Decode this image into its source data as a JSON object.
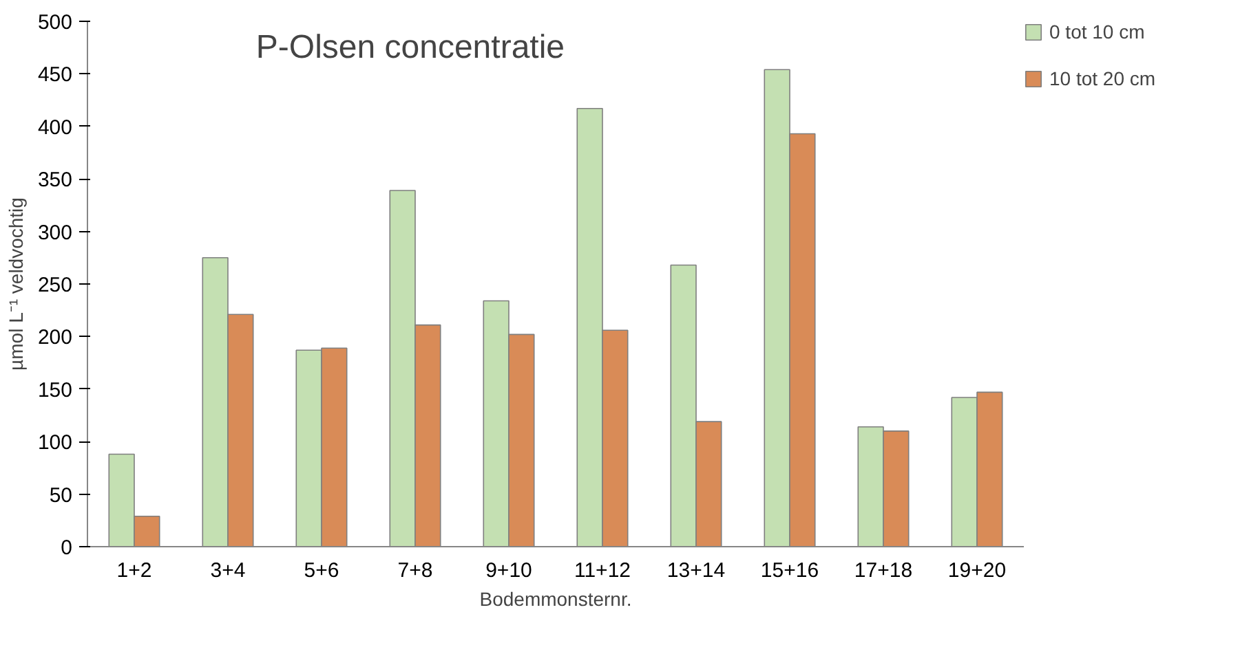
{
  "chart_data": {
    "type": "bar",
    "title": "P-Olsen concentratie",
    "xlabel": "Bodemmonsternr.",
    "ylabel": "µmol L⁻¹ veldvochtig",
    "categories": [
      "1+2",
      "3+4",
      "5+6",
      "7+8",
      "9+10",
      "11+12",
      "13+14",
      "15+16",
      "17+18",
      "19+20"
    ],
    "series": [
      {
        "name": "0 tot 10 cm",
        "color": "#c4e0b2",
        "values": [
          88,
          275,
          187,
          339,
          234,
          417,
          268,
          454,
          114,
          142
        ]
      },
      {
        "name": "10 tot 20 cm",
        "color": "#d98b57",
        "values": [
          29,
          221,
          189,
          211,
          202,
          206,
          119,
          393,
          110,
          147
        ]
      }
    ],
    "ylim": [
      0,
      500
    ],
    "yticks": [
      0,
      50,
      100,
      150,
      200,
      250,
      300,
      350,
      400,
      450,
      500
    ],
    "grid": false,
    "legend": "right"
  }
}
